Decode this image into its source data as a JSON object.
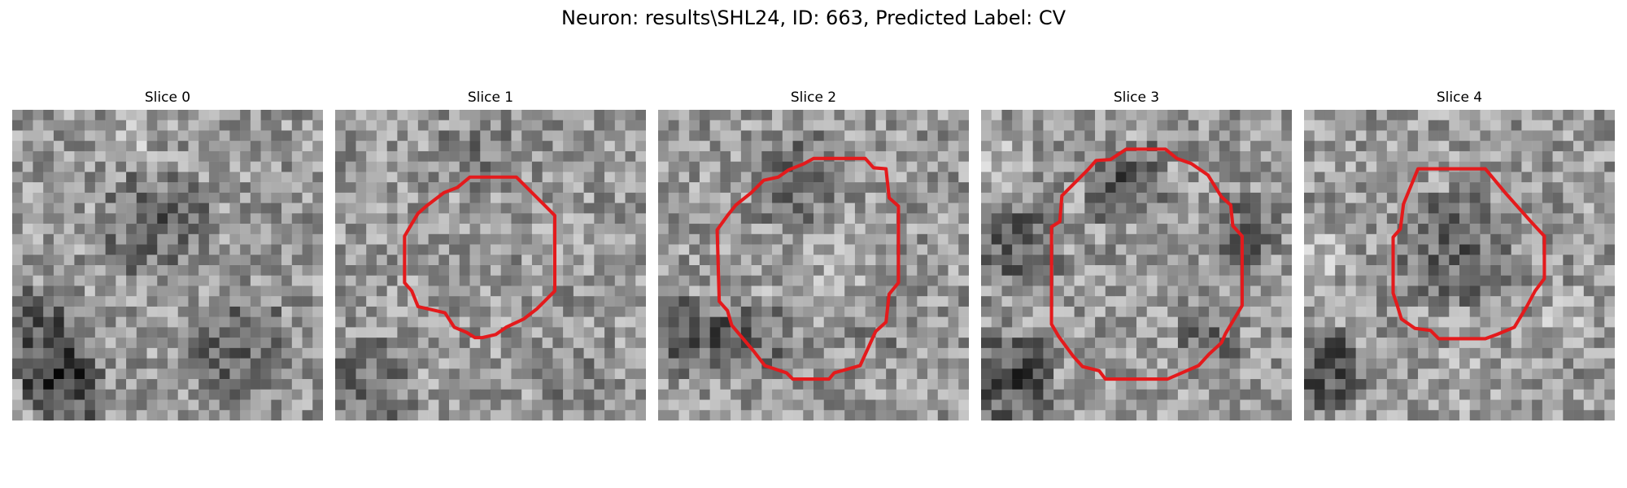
{
  "figure": {
    "title": "Neuron: results\\SHL24, ID: 663, Predicted Label: CV",
    "outline_color": "#e41a1c",
    "colormap": "grayscale"
  },
  "slices": [
    {
      "label": "Slice 0",
      "has_outline": false
    },
    {
      "label": "Slice 1",
      "has_outline": true
    },
    {
      "label": "Slice 2",
      "has_outline": true
    },
    {
      "label": "Slice 3",
      "has_outline": true
    },
    {
      "label": "Slice 4",
      "has_outline": true
    }
  ]
}
